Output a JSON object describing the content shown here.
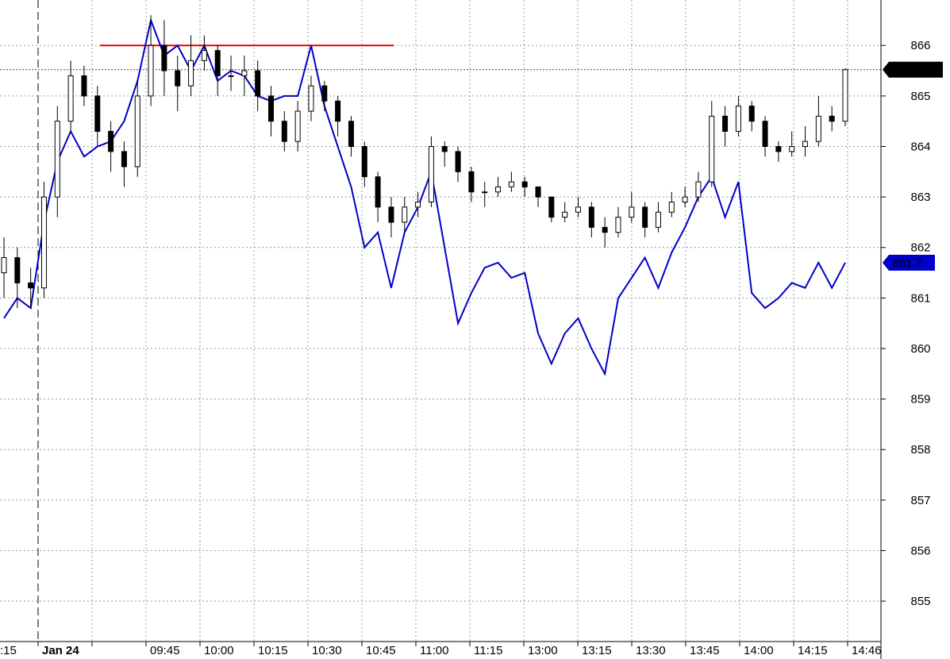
{
  "chart_data": {
    "type": "candlestick",
    "categories": [
      ":15",
      "Jan 24",
      null,
      "09:45",
      "10:00",
      "10:15",
      "10:30",
      "10:45",
      "11:00",
      "11:15",
      "13:00",
      "13:15",
      "13:30",
      "13:45",
      "14:00",
      "14:15",
      "14:46"
    ],
    "ylim": [
      854.2,
      866.9
    ],
    "yticks": [
      855,
      856,
      857,
      858,
      859,
      860,
      861,
      862,
      863,
      864,
      865,
      866
    ],
    "grid": true,
    "candles": {
      "open": [
        861.5,
        861.8,
        861.3,
        861.2,
        863.0,
        864.5,
        865.4,
        865.0,
        864.3,
        863.9,
        863.6,
        865.0,
        866.0,
        865.5,
        865.2,
        865.7,
        865.9,
        865.4,
        865.4,
        865.5,
        865.0,
        864.5,
        864.1,
        864.7,
        865.2,
        864.9,
        864.5,
        864.0,
        863.4,
        862.8,
        862.5,
        862.8,
        862.9,
        864.0,
        863.9,
        863.5,
        863.1,
        863.1,
        863.2,
        863.3,
        863.2,
        863.0,
        862.6,
        862.7,
        862.8,
        862.4,
        862.3,
        862.6,
        862.8,
        862.4,
        862.7,
        862.9,
        863.0,
        863.3,
        864.6,
        864.3,
        864.8,
        864.5,
        864.0,
        863.9,
        864.0,
        864.1,
        864.6,
        864.5
      ],
      "high": [
        862.2,
        862.0,
        861.6,
        863.3,
        864.8,
        865.7,
        865.6,
        865.2,
        864.5,
        864.1,
        865.3,
        866.6,
        866.5,
        865.8,
        866.2,
        866.2,
        866.0,
        865.8,
        865.8,
        865.7,
        865.2,
        864.7,
        864.9,
        865.4,
        865.3,
        865.0,
        864.6,
        864.1,
        863.5,
        863.0,
        863.0,
        863.1,
        864.2,
        864.1,
        864.0,
        863.6,
        863.3,
        863.4,
        863.5,
        863.4,
        863.2,
        863.0,
        862.9,
        863.0,
        862.9,
        862.6,
        862.8,
        863.1,
        862.9,
        862.9,
        863.1,
        863.2,
        863.5,
        864.9,
        864.8,
        865.0,
        864.9,
        864.6,
        864.1,
        864.3,
        864.4,
        865.0,
        864.8,
        865.55
      ],
      "low": [
        861.0,
        860.8,
        860.8,
        861.0,
        862.6,
        864.3,
        864.8,
        864.0,
        863.5,
        863.2,
        863.4,
        864.8,
        865.0,
        864.7,
        865.0,
        865.5,
        865.0,
        865.1,
        865.0,
        864.7,
        864.2,
        863.9,
        863.9,
        864.5,
        864.7,
        864.2,
        863.8,
        863.2,
        862.5,
        862.2,
        862.3,
        862.6,
        862.8,
        863.6,
        863.3,
        862.9,
        862.8,
        863.0,
        863.1,
        863.0,
        862.8,
        862.5,
        862.5,
        862.6,
        862.2,
        862.0,
        862.2,
        862.5,
        862.2,
        862.3,
        862.6,
        862.8,
        862.9,
        863.2,
        864.0,
        864.2,
        864.3,
        863.8,
        863.7,
        863.8,
        863.8,
        864.0,
        864.3,
        864.4
      ],
      "close": [
        861.8,
        861.3,
        861.2,
        863.0,
        864.5,
        865.4,
        865.0,
        864.3,
        863.9,
        863.6,
        865.0,
        866.0,
        865.5,
        865.2,
        865.7,
        865.9,
        865.4,
        865.4,
        865.5,
        865.0,
        864.5,
        864.1,
        864.7,
        865.2,
        864.9,
        864.5,
        864.0,
        863.4,
        862.8,
        862.5,
        862.8,
        862.9,
        864.0,
        863.9,
        863.5,
        863.1,
        863.1,
        863.2,
        863.3,
        863.2,
        863.0,
        862.6,
        862.7,
        862.8,
        862.4,
        862.3,
        862.6,
        862.8,
        862.4,
        862.7,
        862.9,
        863.0,
        863.3,
        864.6,
        864.3,
        864.8,
        864.5,
        864.0,
        863.9,
        864.0,
        864.1,
        864.6,
        864.5,
        865.52
      ]
    },
    "line": {
      "color": "#0000c8",
      "values": [
        860.6,
        861.0,
        860.8,
        862.5,
        863.7,
        864.3,
        863.8,
        864.0,
        864.1,
        864.5,
        865.3,
        866.5,
        865.8,
        866.0,
        865.5,
        866.0,
        865.3,
        865.5,
        865.4,
        865.0,
        864.9,
        865.0,
        865.0,
        866.0,
        864.8,
        864.0,
        863.2,
        862.0,
        862.3,
        861.2,
        862.3,
        862.8,
        863.5,
        862.0,
        860.5,
        861.1,
        861.6,
        861.7,
        861.4,
        861.5,
        860.3,
        859.7,
        860.3,
        860.6,
        860.0,
        859.5,
        861.0,
        861.4,
        861.8,
        861.2,
        861.9,
        862.4,
        863.0,
        863.4,
        862.6,
        863.3,
        861.1,
        860.8,
        861.0,
        861.3,
        861.2,
        861.7,
        861.2,
        861.7
      ]
    },
    "last_price": 865.52,
    "line_last": 861.7,
    "resistance": {
      "value": 866,
      "color": "#e00000"
    }
  }
}
